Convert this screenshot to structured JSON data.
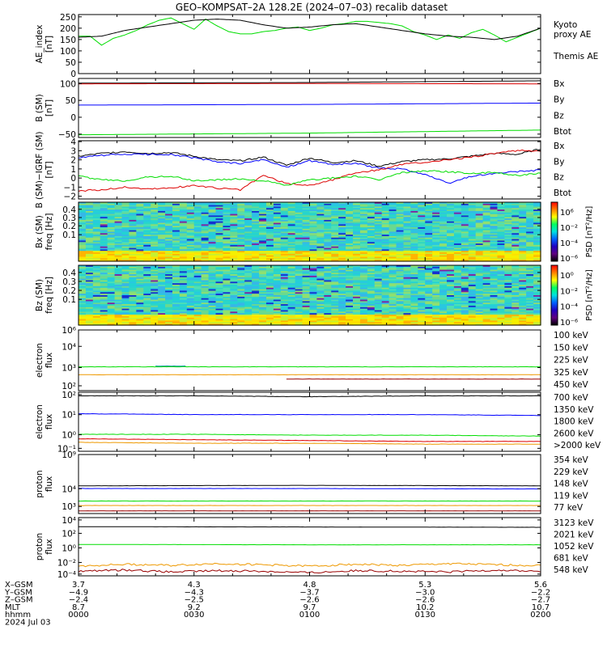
{
  "title": "GEO–KOMPSAT–2A 128.2E (2024–07–03) recalib dataset",
  "colors": {
    "black": "#000000",
    "blue": "#0000ff",
    "green": "#00dd00",
    "red": "#dd0000",
    "orange": "#ee9900",
    "darkred": "#990000",
    "teal": "#009999"
  },
  "chart_data": [
    {
      "id": "ae",
      "type": "line",
      "ylabel": [
        "AE_index",
        "[nT]"
      ],
      "yticks": [
        "250",
        "200",
        "150",
        "100",
        "50",
        "0"
      ],
      "ylim": [
        0,
        260
      ],
      "legend": [
        {
          "label": "Kyoto",
          "color": "#00dd00"
        },
        {
          "label": "proxy AE",
          "color": "#00dd00"
        },
        {
          "label": "Themis AE",
          "color": "#000000"
        }
      ],
      "series": [
        {
          "name": "Kyoto proxy AE",
          "color": "#00dd00",
          "x": [
            0,
            3,
            6,
            9,
            12,
            15,
            18,
            21,
            24,
            27,
            30,
            33,
            36,
            39,
            42,
            45,
            48,
            51,
            54,
            57,
            60,
            63,
            66,
            69,
            72,
            75,
            78,
            81,
            84,
            87,
            90,
            93,
            96,
            99,
            102,
            105,
            108,
            111,
            114,
            117,
            120
          ],
          "values": [
            165,
            165,
            125,
            155,
            170,
            190,
            215,
            235,
            245,
            220,
            195,
            240,
            210,
            185,
            175,
            175,
            185,
            190,
            200,
            205,
            190,
            200,
            215,
            220,
            230,
            230,
            225,
            220,
            210,
            185,
            170,
            150,
            170,
            155,
            180,
            195,
            170,
            140,
            160,
            180,
            200
          ]
        },
        {
          "name": "Themis AE",
          "color": "#000000",
          "x": [
            0,
            6,
            12,
            18,
            24,
            30,
            36,
            42,
            48,
            54,
            60,
            66,
            72,
            78,
            84,
            90,
            96,
            102,
            108,
            114,
            120
          ],
          "values": [
            160,
            165,
            190,
            205,
            220,
            235,
            240,
            235,
            215,
            200,
            205,
            215,
            220,
            205,
            190,
            175,
            165,
            160,
            150,
            165,
            200
          ]
        }
      ]
    },
    {
      "id": "bsm",
      "type": "line",
      "ylabel": [
        "B (SM)",
        "[nT]"
      ],
      "yticks": [
        "100",
        "50",
        "0",
        "−50"
      ],
      "ylim": [
        -60,
        115
      ],
      "legend": [
        {
          "label": "Bx",
          "color": "#0000ff"
        },
        {
          "label": "By",
          "color": "#00dd00"
        },
        {
          "label": "Bz",
          "color": "#dd0000"
        },
        {
          "label": "Btot",
          "color": "#000000"
        }
      ],
      "series": [
        {
          "name": "Btot",
          "color": "#000000",
          "x": [
            0,
            60,
            120
          ],
          "values": [
            101,
            103,
            108
          ]
        },
        {
          "name": "Bz",
          "color": "#dd0000",
          "x": [
            0,
            60,
            120
          ],
          "values": [
            99,
            100,
            99
          ]
        },
        {
          "name": "Bx",
          "color": "#0000ff",
          "x": [
            0,
            60,
            120
          ],
          "values": [
            36,
            38,
            42
          ]
        },
        {
          "name": "By",
          "color": "#00dd00",
          "x": [
            0,
            60,
            120
          ],
          "values": [
            -52,
            -47,
            -38
          ]
        }
      ]
    },
    {
      "id": "dbsm",
      "type": "line",
      "ylabel": [
        "B (SM)−IGRF (SM)",
        "[nT]"
      ],
      "yticks": [
        "4",
        "3",
        "2",
        "1",
        "0",
        "−1",
        "−2"
      ],
      "ylim": [
        -2.3,
        4.1
      ],
      "legend": [
        {
          "label": "Bx",
          "color": "#0000ff"
        },
        {
          "label": "By",
          "color": "#00dd00"
        },
        {
          "label": "Bz",
          "color": "#dd0000"
        },
        {
          "label": "Btot",
          "color": "#000000"
        }
      ],
      "series": [
        {
          "name": "Btot",
          "color": "#000000",
          "x": [
            0,
            6,
            12,
            18,
            24,
            30,
            36,
            42,
            48,
            54,
            60,
            66,
            72,
            78,
            84,
            90,
            96,
            102,
            108,
            114,
            120
          ],
          "values": [
            2.4,
            2.7,
            2.9,
            2.7,
            2.8,
            2.4,
            2.0,
            1.9,
            2.3,
            1.4,
            2.2,
            1.7,
            1.9,
            1.3,
            1.8,
            2.0,
            2.1,
            2.4,
            2.7,
            2.6,
            3.2
          ]
        },
        {
          "name": "Bx",
          "color": "#0000ff",
          "x": [
            0,
            6,
            12,
            18,
            24,
            30,
            36,
            42,
            48,
            54,
            60,
            66,
            72,
            78,
            84,
            90,
            96,
            102,
            108,
            114,
            120
          ],
          "values": [
            2.2,
            2.5,
            2.6,
            2.6,
            2.6,
            2.2,
            1.8,
            1.6,
            2.0,
            1.2,
            1.9,
            1.5,
            1.6,
            1.1,
            1.0,
            0.4,
            -0.6,
            0.2,
            0.5,
            0.7,
            0.9
          ]
        },
        {
          "name": "Bz",
          "color": "#dd0000",
          "x": [
            0,
            6,
            12,
            18,
            24,
            30,
            36,
            42,
            48,
            54,
            60,
            66,
            72,
            78,
            84,
            90,
            96,
            102,
            108,
            114,
            120
          ],
          "values": [
            -1.4,
            -1.3,
            -1.0,
            -1.2,
            -1.1,
            -0.8,
            -1.1,
            -1.3,
            0.3,
            -0.6,
            -0.8,
            -0.2,
            0.6,
            0.9,
            1.5,
            1.7,
            2.0,
            2.3,
            2.7,
            3.0,
            3.0
          ]
        },
        {
          "name": "By",
          "color": "#00dd00",
          "x": [
            0,
            6,
            12,
            18,
            24,
            30,
            36,
            42,
            48,
            54,
            60,
            66,
            72,
            78,
            84,
            90,
            96,
            102,
            108,
            114,
            120
          ],
          "values": [
            0.2,
            -0.2,
            -0.3,
            0.1,
            0.2,
            -0.3,
            -0.2,
            -0.1,
            -0.3,
            -0.8,
            -0.2,
            0.0,
            0.2,
            -0.2,
            0.6,
            0.8,
            0.7,
            0.5,
            0.6,
            0.3,
            0.5
          ]
        }
      ]
    },
    {
      "id": "bxspec",
      "type": "heatmap",
      "ylabel": [
        "Bx (SM)",
        "freq [Hz]"
      ],
      "yticks": [
        "0.4",
        "0.3",
        "0.2",
        "0.1"
      ],
      "ylim": [
        0,
        0.5
      ],
      "colorbar": {
        "label": "PSD [nT²/Hz]",
        "ticks": [
          "10⁶",
          "10⁻²",
          "10⁻⁴",
          "10⁻⁶"
        ]
      }
    },
    {
      "id": "bzspec",
      "type": "heatmap",
      "ylabel": [
        "Bz (SM)",
        "freq [Hz]"
      ],
      "yticks": [
        "0.4",
        "0.3",
        "0.2",
        "0.1"
      ],
      "ylim": [
        0,
        0.5
      ],
      "colorbar": {
        "label": "PSD [nT²/Hz]",
        "ticks": [
          "10⁰",
          "10⁻²",
          "10⁻⁴",
          "10⁻⁶"
        ]
      }
    },
    {
      "id": "e1",
      "type": "line",
      "log": true,
      "ylabel": [
        "electron",
        "flux"
      ],
      "yticks": [
        "10⁶",
        "10⁴",
        "10³",
        "10²"
      ],
      "ylim_log": [
        1.8,
        6.0
      ],
      "legend": [
        {
          "label": "100 keV",
          "color": "#000000"
        },
        {
          "label": "150 keV",
          "color": "#0000ff"
        },
        {
          "label": "225 keV",
          "color": "#00dd00"
        },
        {
          "label": "325 keV",
          "color": "#ee9900"
        },
        {
          "label": "450 keV",
          "color": "#990000"
        }
      ],
      "series": [
        {
          "name": "225 keV",
          "color": "#00dd00",
          "x": [
            0,
            120
          ],
          "values": [
            3.45,
            3.45
          ]
        },
        {
          "name": "325 keV",
          "color": "#ee9900",
          "x": [
            0,
            120
          ],
          "values": [
            2.9,
            2.9
          ]
        },
        {
          "name": "150 keV",
          "color": "#009999",
          "x": [
            20,
            28
          ],
          "values": [
            3.5,
            3.5
          ]
        },
        {
          "name": "450 keV",
          "color": "#990000",
          "x": [
            54,
            120
          ],
          "values": [
            2.6,
            2.6
          ]
        }
      ]
    },
    {
      "id": "e2",
      "type": "line",
      "log": true,
      "ylabel": [
        "electron",
        "flux"
      ],
      "yticks": [
        "10²",
        "10¹",
        "10⁰",
        "10⁻¹"
      ],
      "ylim_log": [
        -1.3,
        2.0
      ],
      "legend": [
        {
          "label": "700 keV",
          "color": "#000000"
        },
        {
          "label": "1350 keV",
          "color": "#0000ff"
        },
        {
          "label": "1800 keV",
          "color": "#00dd00"
        },
        {
          "label": "2600 keV",
          "color": "#ee9900"
        },
        {
          "label": ">2000 keV",
          "color": "#dd0000"
        }
      ],
      "series": [
        {
          "name": "700 keV",
          "color": "#000000",
          "x": [
            0,
            30,
            60,
            90,
            120
          ],
          "values": [
            1.8,
            1.8,
            1.75,
            1.8,
            1.8
          ]
        },
        {
          "name": "1350 keV",
          "color": "#0000ff",
          "x": [
            0,
            30,
            60,
            90,
            120
          ],
          "values": [
            0.8,
            0.75,
            0.75,
            0.75,
            0.7
          ]
        },
        {
          "name": "1800 keV",
          "color": "#00dd00",
          "x": [
            0,
            30,
            60,
            90,
            120
          ],
          "values": [
            -0.35,
            -0.35,
            -0.4,
            -0.4,
            -0.45
          ]
        },
        {
          "name": "2600 keV",
          "color": "#ee9900",
          "x": [
            0,
            30,
            60,
            90,
            120
          ],
          "values": [
            -0.8,
            -0.85,
            -0.85,
            -0.9,
            -0.9
          ]
        },
        {
          "name": ">2000 keV",
          "color": "#dd0000",
          "x": [
            0,
            30,
            60,
            90,
            120
          ],
          "values": [
            -0.6,
            -0.65,
            -0.7,
            -0.75,
            -0.75
          ]
        }
      ]
    },
    {
      "id": "p1",
      "type": "line",
      "log": true,
      "ylabel": [
        "proton",
        "flux"
      ],
      "yticks": [
        "10⁹",
        "10⁴",
        "10³"
      ],
      "ylim_log": [
        2.4,
        9.0
      ],
      "legend": [
        {
          "label": "354 keV",
          "color": "#dd0000"
        },
        {
          "label": "229 keV",
          "color": "#ee9900"
        },
        {
          "label": "148 keV",
          "color": "#00dd00"
        },
        {
          "label": "119 keV",
          "color": "#0000ff"
        },
        {
          "label": "77 keV",
          "color": "#000000"
        }
      ],
      "series": [
        {
          "name": "77 keV",
          "color": "#000000",
          "x": [
            0,
            60,
            120
          ],
          "values": [
            5.5,
            5.55,
            5.5
          ]
        },
        {
          "name": "119 keV",
          "color": "#0000ff",
          "x": [
            0,
            60,
            120
          ],
          "values": [
            5.2,
            5.2,
            5.15
          ]
        },
        {
          "name": "148 keV",
          "color": "#00dd00",
          "x": [
            0,
            60,
            120
          ],
          "values": [
            3.8,
            3.8,
            3.8
          ]
        },
        {
          "name": "229 keV",
          "color": "#ee9900",
          "x": [
            0,
            60,
            120
          ],
          "values": [
            3.3,
            3.3,
            3.3
          ]
        },
        {
          "name": "354 keV",
          "color": "#990000",
          "x": [
            0,
            60,
            120
          ],
          "values": [
            2.7,
            2.7,
            2.7
          ]
        }
      ]
    },
    {
      "id": "p2",
      "type": "line",
      "log": true,
      "ylabel": [
        "proton",
        "flux"
      ],
      "yticks": [
        "10⁴",
        "10²",
        "10⁰",
        "10⁻²",
        "10⁻⁴"
      ],
      "ylim_log": [
        -4.7,
        4.3
      ],
      "legend": [
        {
          "label": "3123 keV",
          "color": "#990000"
        },
        {
          "label": "2021 keV",
          "color": "#ee9900"
        },
        {
          "label": "1052 keV",
          "color": "#00dd00"
        },
        {
          "label": "681 keV",
          "color": "#0000ff"
        },
        {
          "label": "548 keV",
          "color": "#000000"
        }
      ],
      "series": [
        {
          "name": "548 keV",
          "color": "#000000",
          "x": [
            0,
            60,
            120
          ],
          "values": [
            2.9,
            2.85,
            2.8
          ]
        },
        {
          "name": "1052 keV",
          "color": "#00dd00",
          "x": [
            0,
            60,
            120
          ],
          "values": [
            0.15,
            0.1,
            0.1
          ]
        },
        {
          "name": "2021 keV",
          "color": "#ee9900",
          "x": [
            0,
            12,
            24,
            36,
            48,
            60,
            72,
            84,
            96,
            108,
            120
          ],
          "values": [
            -3.2,
            -2.9,
            -3.1,
            -2.8,
            -3.0,
            -3.2,
            -2.9,
            -3.1,
            -2.8,
            -3.0,
            -3.1
          ]
        },
        {
          "name": "3123 keV",
          "color": "#990000",
          "x": [
            0,
            12,
            24,
            36,
            48,
            60,
            72,
            84,
            96,
            108,
            120
          ],
          "values": [
            -4.0,
            -3.8,
            -4.1,
            -3.9,
            -4.0,
            -4.2,
            -3.9,
            -4.0,
            -4.1,
            -3.8,
            -4.0
          ]
        }
      ]
    }
  ],
  "xaxis": {
    "tick_x": [
      0,
      30,
      60,
      90,
      120
    ],
    "rows": [
      {
        "label": "X–GSM",
        "values": [
          "3.7",
          "4.3",
          "4.8",
          "5.3",
          "5.6"
        ]
      },
      {
        "label": "Y–GSM",
        "values": [
          "−4.9",
          "−4.3",
          "−3.7",
          "−3.0",
          "−2.2"
        ]
      },
      {
        "label": "Z–GSM",
        "values": [
          "−2.4",
          "−2.5",
          "−2.6",
          "−2.6",
          "−2.7"
        ]
      },
      {
        "label": "MLT",
        "values": [
          "8.7",
          "9.2",
          "9.7",
          "10.2",
          "10.7"
        ]
      },
      {
        "label": "hhmm",
        "values": [
          "0000",
          "0030",
          "0100",
          "0130",
          "0200"
        ]
      }
    ],
    "date": "2024 Jul 03"
  }
}
